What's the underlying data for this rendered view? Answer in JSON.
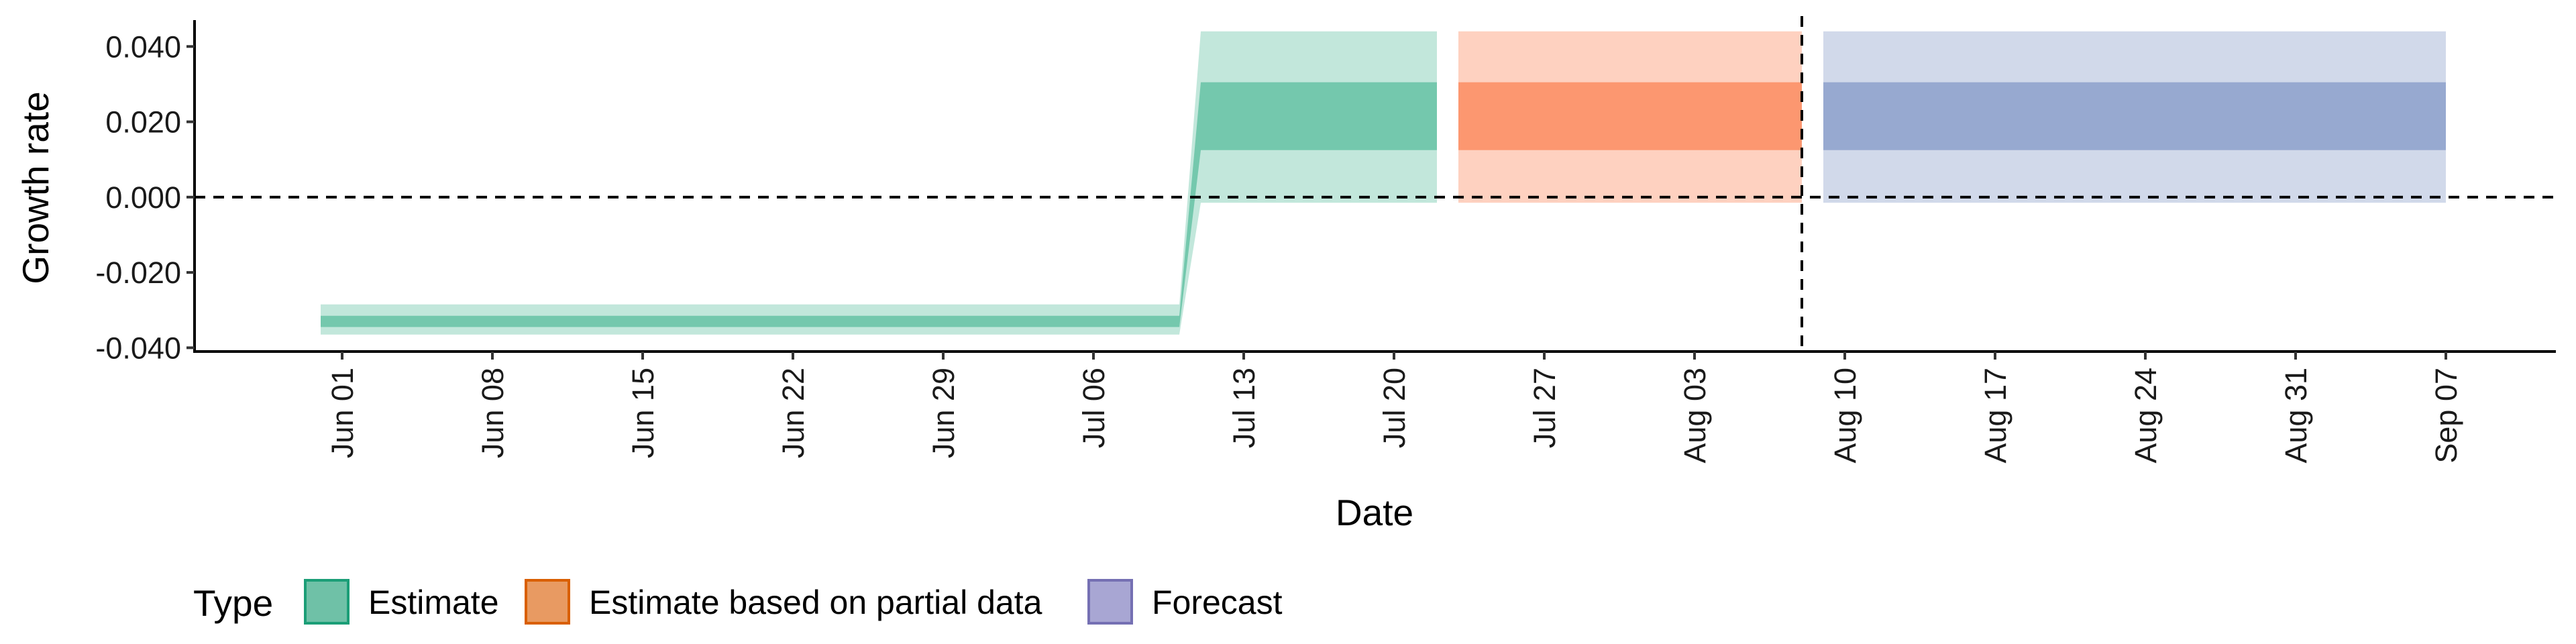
{
  "chart_data": {
    "type": "area",
    "title": "",
    "xlabel": "Date",
    "ylabel": "Growth rate",
    "xlim": [
      "2021-05-26",
      "2021-09-14"
    ],
    "ylim": [
      -0.041,
      0.047
    ],
    "y_ticks": [
      -0.04,
      -0.02,
      0.0,
      0.02,
      0.04
    ],
    "y_tick_labels": [
      "-0.040",
      "-0.020",
      "0.000",
      "0.020",
      "0.040"
    ],
    "x_ticks": [
      "2021-06-01",
      "2021-06-08",
      "2021-06-15",
      "2021-06-22",
      "2021-06-29",
      "2021-07-06",
      "2021-07-13",
      "2021-07-20",
      "2021-07-27",
      "2021-08-03",
      "2021-08-10",
      "2021-08-17",
      "2021-08-24",
      "2021-08-31",
      "2021-09-07"
    ],
    "x_tick_labels": [
      "Jun 01",
      "Jun 08",
      "Jun 15",
      "Jun 22",
      "Jun 29",
      "Jul 06",
      "Jul 13",
      "Jul 20",
      "Jul 27",
      "Aug 03",
      "Aug 10",
      "Aug 17",
      "Aug 24",
      "Aug 31",
      "Sep 07"
    ],
    "reference_lines": {
      "horizontal_y": 0.0,
      "vertical_x": "2021-08-08"
    },
    "series": [
      {
        "name": "Estimate",
        "color": "#66c2a5",
        "edge_color": "#1b9e77",
        "points": [
          {
            "date": "2021-05-31",
            "lower_90": -0.0365,
            "lower_50": -0.0345,
            "upper_50": -0.0315,
            "upper_90": -0.0285
          },
          {
            "date": "2021-07-10",
            "lower_90": -0.0365,
            "lower_50": -0.0345,
            "upper_50": -0.0315,
            "upper_90": -0.0285
          },
          {
            "date": "2021-07-11",
            "lower_90": -0.0015,
            "lower_50": 0.0125,
            "upper_50": 0.0305,
            "upper_90": 0.044
          },
          {
            "date": "2021-07-22",
            "lower_90": -0.0015,
            "lower_50": 0.0125,
            "upper_50": 0.0305,
            "upper_90": 0.044
          }
        ]
      },
      {
        "name": "Estimate based on partial data",
        "color": "#fc8d62",
        "edge_color": "#d95f02",
        "points": [
          {
            "date": "2021-07-23",
            "lower_90": -0.0015,
            "lower_50": 0.0125,
            "upper_50": 0.0305,
            "upper_90": 0.044
          },
          {
            "date": "2021-08-08",
            "lower_90": -0.0015,
            "lower_50": 0.0125,
            "upper_50": 0.0305,
            "upper_90": 0.044
          }
        ]
      },
      {
        "name": "Forecast",
        "color": "#8da0cb",
        "edge_color": "#7570b3",
        "points": [
          {
            "date": "2021-08-09",
            "lower_90": -0.0015,
            "lower_50": 0.0125,
            "upper_50": 0.0305,
            "upper_90": 0.044
          },
          {
            "date": "2021-09-07",
            "lower_90": -0.0015,
            "lower_50": 0.0125,
            "upper_50": 0.0305,
            "upper_90": 0.044
          }
        ]
      }
    ],
    "legend": {
      "title": "Type",
      "position": "bottom-left",
      "items": [
        {
          "label": "Estimate",
          "fill": "#6fc1a7",
          "stroke": "#1b9e77"
        },
        {
          "label": "Estimate based on partial data",
          "fill": "#e89a62",
          "stroke": "#d95f02"
        },
        {
          "label": "Forecast",
          "fill": "#a8a6d3",
          "stroke": "#7570b3"
        }
      ]
    }
  }
}
